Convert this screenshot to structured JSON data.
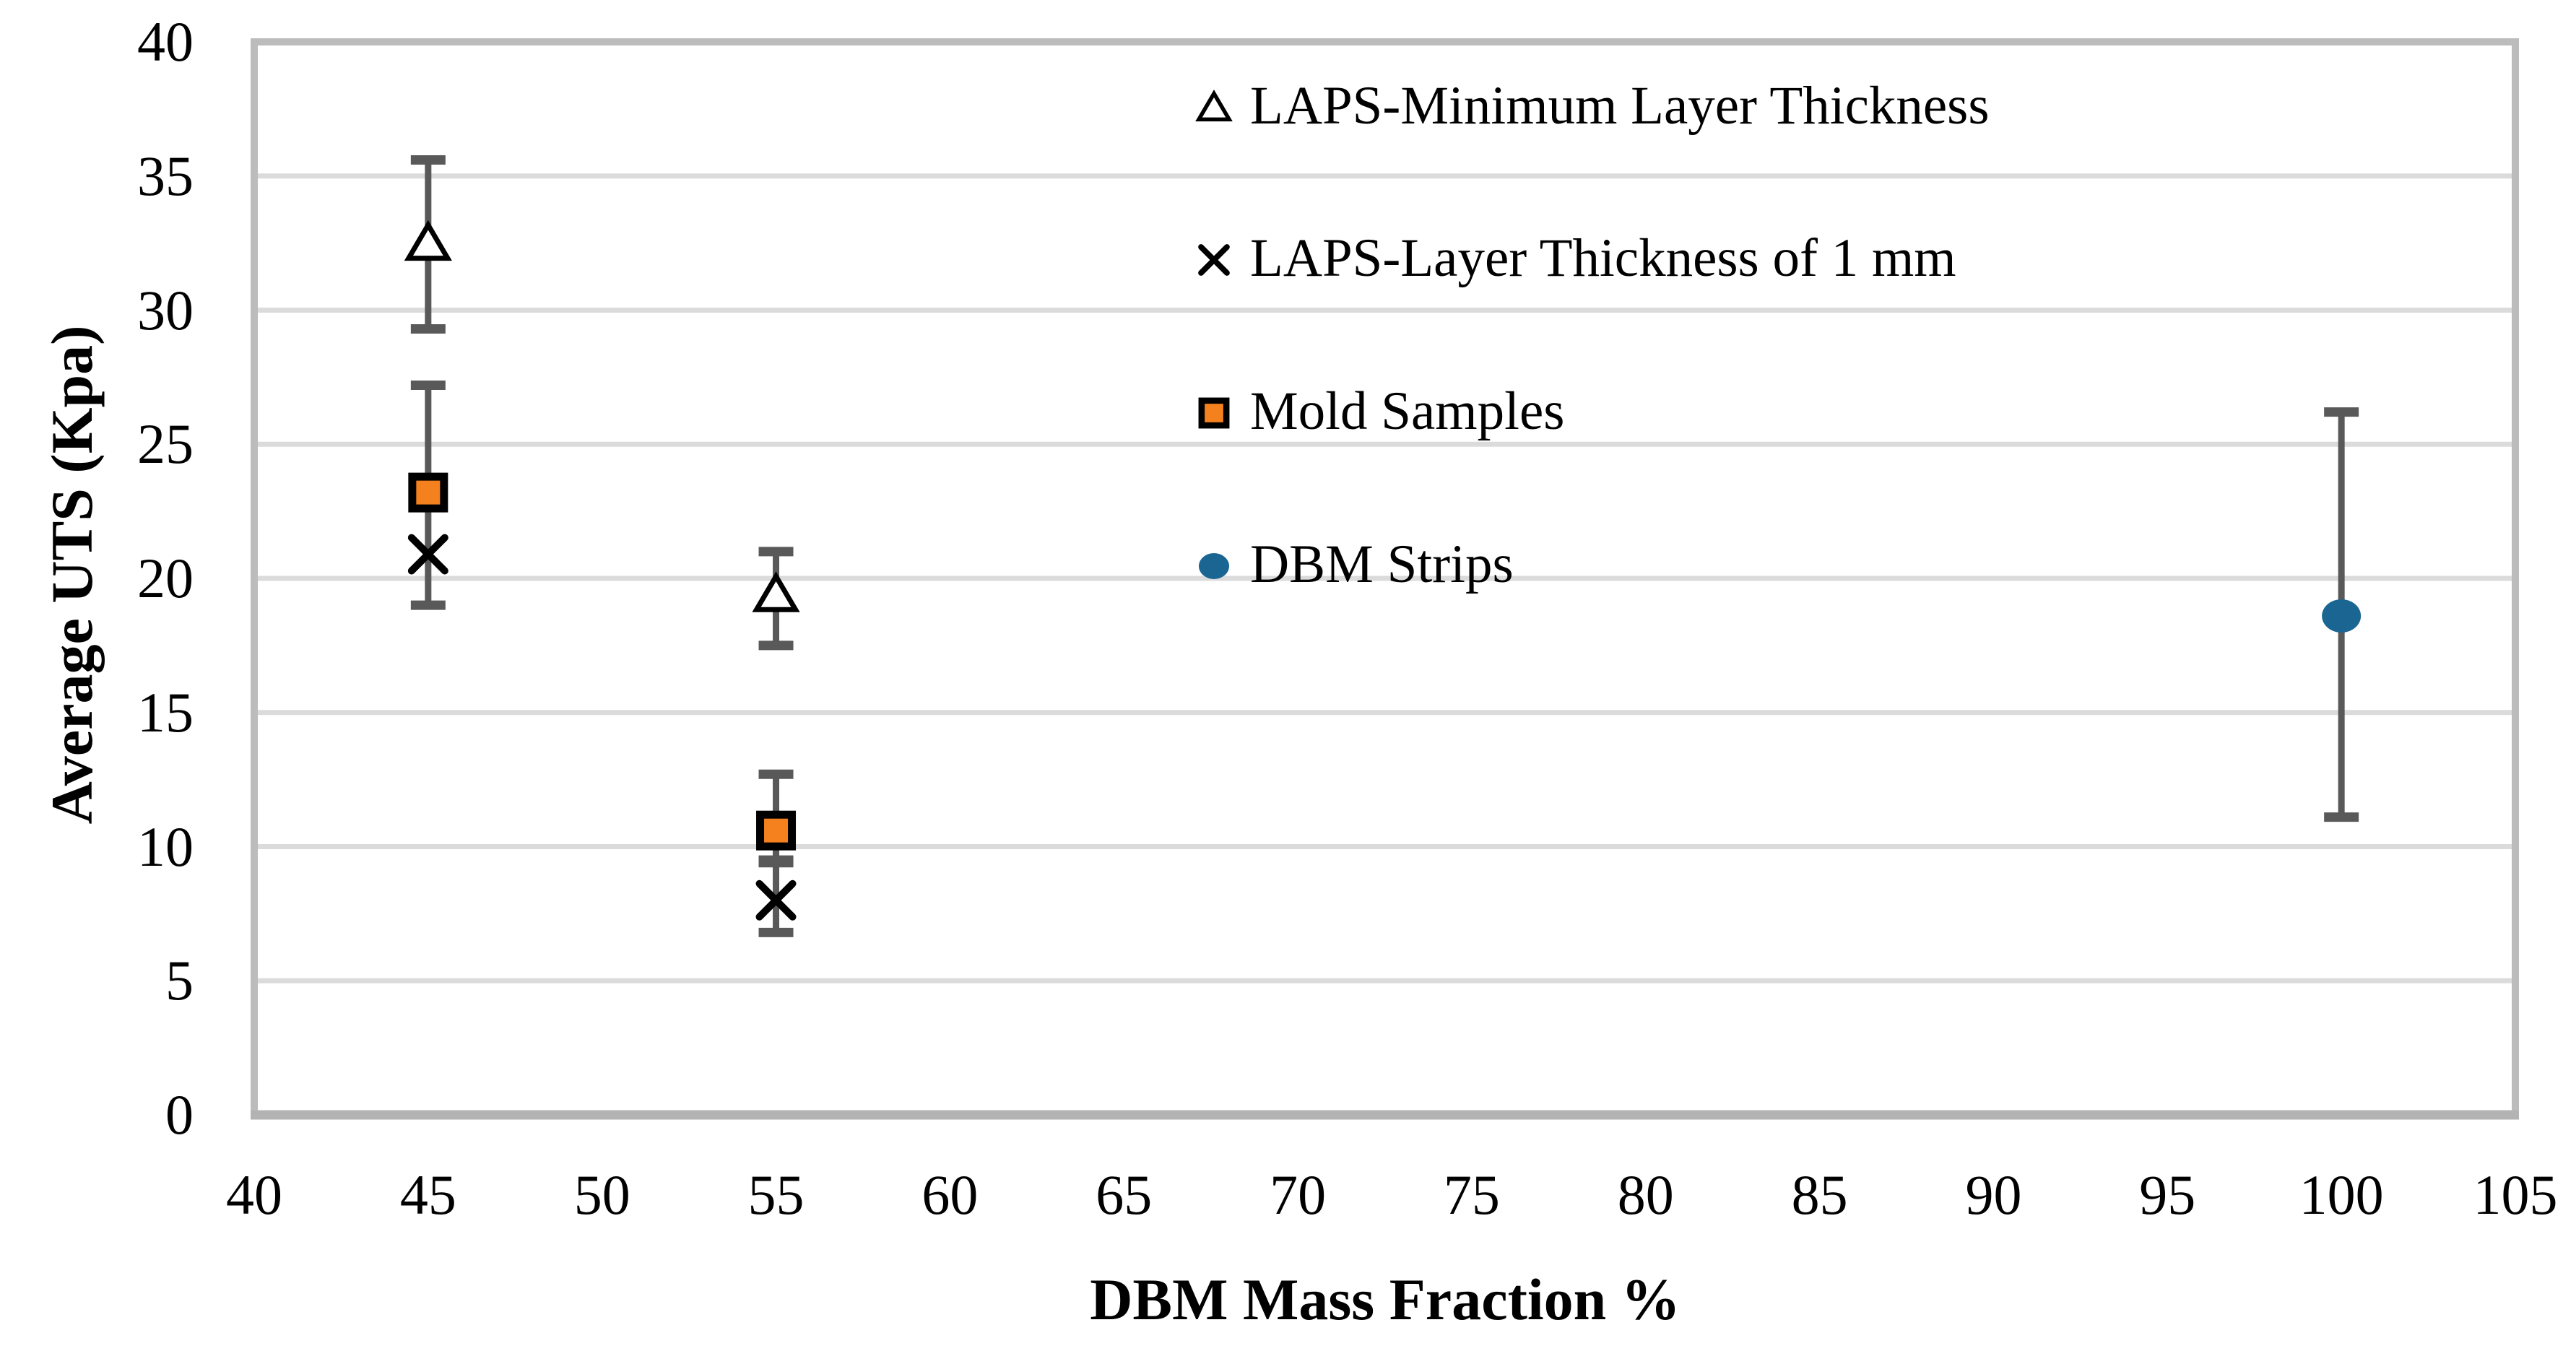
{
  "chart_data": {
    "type": "scatter",
    "title": "",
    "xlabel": "DBM Mass Fraction %",
    "ylabel": "Average UTS (Kpa)",
    "xlim": [
      40,
      105
    ],
    "ylim": [
      0,
      40
    ],
    "xticks": [
      40,
      45,
      50,
      55,
      60,
      65,
      70,
      75,
      80,
      85,
      90,
      95,
      100,
      105
    ],
    "yticks": [
      0,
      5,
      10,
      15,
      20,
      25,
      30,
      35,
      40
    ],
    "grid": "horizontal",
    "legend_position": "inside-top-center",
    "series": [
      {
        "name": "LAPS-Minimum Layer Thickness",
        "marker": "triangle-open",
        "color": "#000000",
        "fill": "#ffffff",
        "points": [
          {
            "x": 45,
            "y": 32.5,
            "err_low": 29.3,
            "err_high": 35.6
          },
          {
            "x": 55,
            "y": 19.4,
            "err_low": 17.5,
            "err_high": 21.0
          }
        ]
      },
      {
        "name": "LAPS-Layer Thickness of 1 mm",
        "marker": "x",
        "color": "#000000",
        "fill": "none",
        "points": [
          {
            "x": 45,
            "y": 20.9,
            "err_low": null,
            "err_high": null
          },
          {
            "x": 55,
            "y": 8.0,
            "err_low": 6.8,
            "err_high": 9.4
          }
        ]
      },
      {
        "name": "Mold Samples",
        "marker": "square",
        "color": "#000000",
        "fill": "#F5801E",
        "points": [
          {
            "x": 45,
            "y": 23.2,
            "err_low": 19.0,
            "err_high": 27.2
          },
          {
            "x": 55,
            "y": 10.6,
            "err_low": 9.5,
            "err_high": 12.7
          }
        ]
      },
      {
        "name": "DBM Strips",
        "marker": "circle",
        "color": "#1B6593",
        "fill": "#1B6593",
        "points": [
          {
            "x": 100,
            "y": 18.6,
            "err_low": 11.1,
            "err_high": 26.2
          }
        ]
      }
    ],
    "style": {
      "error_bar_color": "#595959",
      "gridline_color": "#DBDBDB",
      "plot_border_color": "#BCBCBC",
      "bottom_axis_color": "#B3B3B3"
    }
  }
}
